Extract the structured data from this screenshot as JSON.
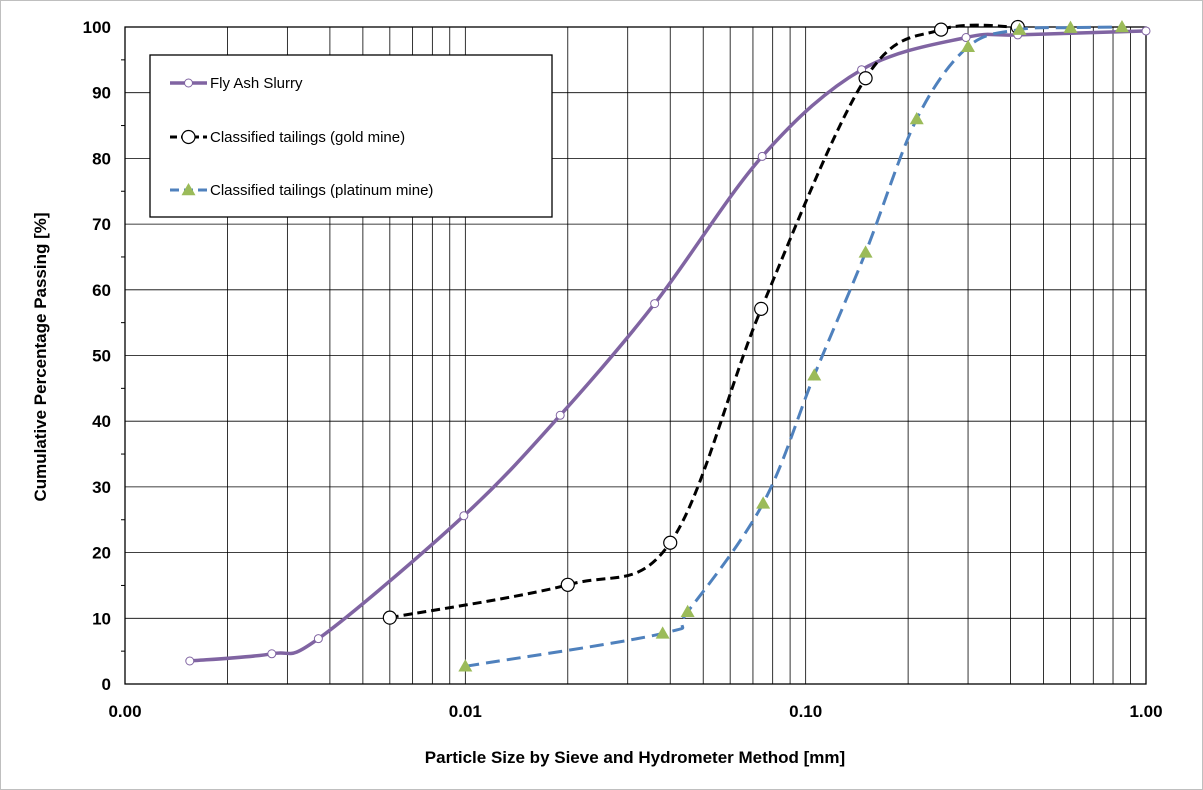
{
  "chart_data": {
    "type": "scatter",
    "xscale": "log",
    "xlim": [
      0.001,
      1.0
    ],
    "ylim": [
      0,
      100
    ],
    "xlabel": "Particle Size by Sieve and Hydrometer Method [mm]",
    "ylabel": "Cumulative Percentage Passing [%]",
    "grid": true,
    "legend": "top-left",
    "x_ticks": [
      {
        "value": 0.001,
        "label": "0.00"
      },
      {
        "value": 0.01,
        "label": "0.01"
      },
      {
        "value": 0.1,
        "label": "0.10"
      },
      {
        "value": 1.0,
        "label": "1.00"
      }
    ],
    "y_ticks": [
      {
        "value": 0,
        "label": "0"
      },
      {
        "value": 10,
        "label": "10"
      },
      {
        "value": 20,
        "label": "20"
      },
      {
        "value": 30,
        "label": "30"
      },
      {
        "value": 40,
        "label": "40"
      },
      {
        "value": 50,
        "label": "50"
      },
      {
        "value": 60,
        "label": "60"
      },
      {
        "value": 70,
        "label": "70"
      },
      {
        "value": 80,
        "label": "80"
      },
      {
        "value": 90,
        "label": "90"
      },
      {
        "value": 100,
        "label": "100"
      }
    ],
    "series": [
      {
        "name": "Fly Ash Slurry",
        "color": "#8064a2",
        "marker": "circle-small",
        "line": "solid",
        "points": [
          [
            0.00155,
            3.5
          ],
          [
            0.0027,
            4.6
          ],
          [
            0.0037,
            6.9
          ],
          [
            0.0099,
            25.6
          ],
          [
            0.019,
            40.9
          ],
          [
            0.036,
            57.9
          ],
          [
            0.0745,
            80.3
          ],
          [
            0.146,
            93.5
          ],
          [
            0.296,
            98.4
          ],
          [
            0.42,
            98.8
          ],
          [
            1.0,
            99.4
          ]
        ]
      },
      {
        "name": "Classified tailings (gold mine)",
        "color": "#000000",
        "marker": "circle-large",
        "line": "dashed",
        "points": [
          [
            0.006,
            10.1
          ],
          [
            0.02,
            15.1
          ],
          [
            0.04,
            21.5
          ],
          [
            0.074,
            57.1
          ],
          [
            0.15,
            92.2
          ],
          [
            0.25,
            99.6
          ],
          [
            0.42,
            100.0
          ]
        ]
      },
      {
        "name": "Classified tailings (platinum mine)",
        "color": "#4f81bd",
        "marker_color": "#9bbb59",
        "marker": "triangle",
        "line": "dashed",
        "points": [
          [
            0.01,
            2.7
          ],
          [
            0.038,
            7.7
          ],
          [
            0.045,
            11.0
          ],
          [
            0.075,
            27.5
          ],
          [
            0.106,
            47.0
          ],
          [
            0.15,
            65.7
          ],
          [
            0.212,
            86.0
          ],
          [
            0.3,
            97.0
          ],
          [
            0.425,
            99.6
          ],
          [
            0.6,
            99.9
          ],
          [
            0.85,
            100.0
          ]
        ]
      }
    ]
  }
}
